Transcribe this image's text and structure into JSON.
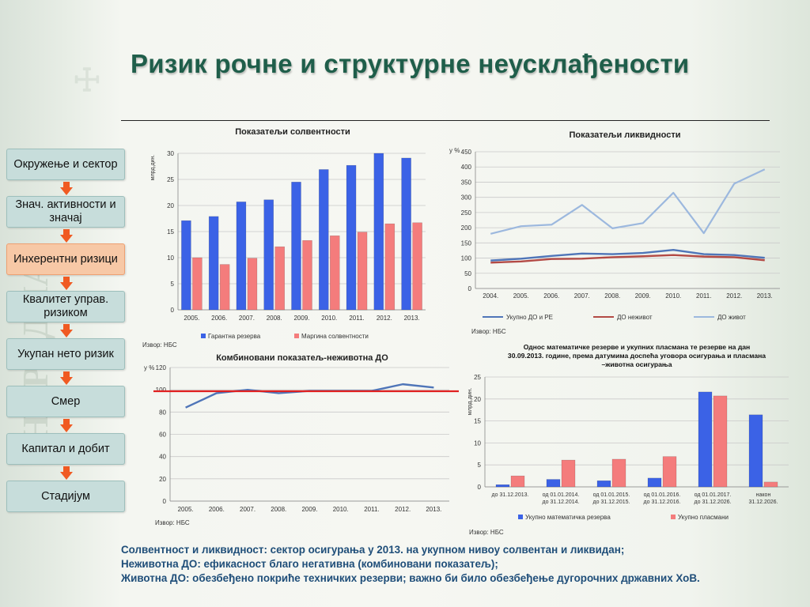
{
  "page": {
    "title": "Ризик рочне и структурне неусклађености"
  },
  "nav": {
    "items": [
      {
        "label": "Окружење и сектор",
        "active": false
      },
      {
        "label": "Знач. активности и значај",
        "active": false
      },
      {
        "label": "Инхерентни ризици",
        "active": true
      },
      {
        "label": "Квалитет управ. ризиком",
        "active": false
      },
      {
        "label": "Укупан нето ризик",
        "active": false
      },
      {
        "label": "Смер",
        "active": false
      },
      {
        "label": "Капитал и добит",
        "active": false
      },
      {
        "label": "Стадијум",
        "active": false
      }
    ]
  },
  "colors": {
    "title": "#1f5e4a",
    "summary": "#1f4e79",
    "active_nav": "#f7c8a6",
    "nav": "#c7dddb",
    "arrow": "#f05a22"
  },
  "chart_data": [
    {
      "id": "solvency",
      "type": "bar",
      "title": "Показатељи солвентности",
      "ylabel": "млрд.дин.",
      "source": "Извор: НБС",
      "categories": [
        "2005.",
        "2006.",
        "2007.",
        "2008.",
        "2009.",
        "2010.",
        "2011.",
        "2012.",
        "2013."
      ],
      "ylim": [
        0,
        30
      ],
      "yticks": [
        0,
        5,
        10,
        15,
        20,
        25,
        30
      ],
      "series": [
        {
          "name": "Гарантна резерва",
          "color": "#3b62e6",
          "values": [
            17.1,
            17.9,
            20.7,
            21.1,
            24.5,
            26.9,
            27.7,
            30.0,
            29.1
          ]
        },
        {
          "name": "Маргина солвентности",
          "color": "#f47c7c",
          "values": [
            10.0,
            8.7,
            9.9,
            12.1,
            13.3,
            14.2,
            14.9,
            16.5,
            16.7
          ]
        }
      ],
      "legend": "bottom",
      "grid": true
    },
    {
      "id": "liquidity",
      "type": "line",
      "title": "Показатељи ликвидности",
      "ylabel": "у %",
      "source": "Извор: НБС",
      "categories": [
        "2004.",
        "2005.",
        "2006.",
        "2007.",
        "2008.",
        "2009.",
        "2010.",
        "2011.",
        "2012.",
        "2013."
      ],
      "ylim": [
        0,
        450
      ],
      "yticks": [
        0,
        50,
        100,
        150,
        200,
        250,
        300,
        350,
        400,
        450
      ],
      "series": [
        {
          "name": "Укупно ДО и РЕ",
          "color": "#4f75b8",
          "values": [
            92,
            98,
            107,
            115,
            113,
            117,
            127,
            113,
            110,
            101
          ]
        },
        {
          "name": "ДО неживот",
          "color": "#b34a45",
          "values": [
            85,
            89,
            97,
            98,
            103,
            106,
            110,
            105,
            103,
            93
          ]
        },
        {
          "name": "ДО живот",
          "color": "#9cb8de",
          "values": [
            180,
            205,
            210,
            275,
            198,
            215,
            315,
            182,
            345,
            392
          ]
        }
      ],
      "legend": "bottom",
      "grid": true
    },
    {
      "id": "combined",
      "type": "line",
      "title": "Комбиновани показатељ-неживотна ДО",
      "ylabel": "у %",
      "source": "Извор: НБС",
      "categories": [
        "2005.",
        "2006.",
        "2007.",
        "2008.",
        "2009.",
        "2010.",
        "2011.",
        "2012.",
        "2013."
      ],
      "ylim": [
        0,
        120
      ],
      "yticks": [
        0,
        20,
        40,
        60,
        80,
        100,
        120
      ],
      "reference_line": 98.7,
      "series": [
        {
          "name": "",
          "color": "#4f75b8",
          "values": [
            84,
            97,
            100,
            97,
            99,
            99,
            99,
            105,
            102
          ]
        }
      ],
      "grid": true
    },
    {
      "id": "maturity",
      "type": "bar",
      "title": "Однос математичке резерве и укупних пласмана те резерве на дан 30.09.2013. године, према датумима доспећа уговора осигурања и пласмана –животна осигурања",
      "title_lines": [
        "Однос математичке резерве и укупних пласмана те резерве на дан",
        "30.09.2013. године, према датумима доспећа уговора осигурања и пласмана",
        "–животна осигурања"
      ],
      "ylabel": "млрд.дин.",
      "source": "Извор: НБС",
      "categories": [
        [
          "до 31.12.2013."
        ],
        [
          "од 01.01.2014.",
          "до 31.12.2014."
        ],
        [
          "од 01.01.2015.",
          "до 31.12.2015."
        ],
        [
          "од 01.01.2016.",
          "до 31.12.2016."
        ],
        [
          "од 01.01.2017.",
          "до 31.12.2026."
        ],
        [
          "након",
          "31.12.2026."
        ]
      ],
      "ylim": [
        0,
        25
      ],
      "yticks": [
        0,
        5,
        10,
        15,
        20,
        25
      ],
      "series": [
        {
          "name": "Укупно математичка резерва",
          "color": "#3b62e6",
          "values": [
            0.5,
            1.7,
            1.4,
            2.0,
            21.6,
            16.4
          ]
        },
        {
          "name": "Укупно пласмани",
          "color": "#f47c7c",
          "values": [
            2.5,
            6.1,
            6.3,
            6.9,
            20.7,
            1.1
          ]
        }
      ],
      "legend": "bottom",
      "grid": true
    }
  ],
  "summary": [
    "Солвентност и ликвидност: сектор осигурања у 2013. на укупном нивоу солвентан и ликвидан;",
    "Неживотна ДО: ефикасност благо негативна (комбиновани показатељ);",
    "Животна ДО: обезбеђено покриће техничких резерви; важно би било обезбеђење дугорочних државних ХоВ."
  ]
}
